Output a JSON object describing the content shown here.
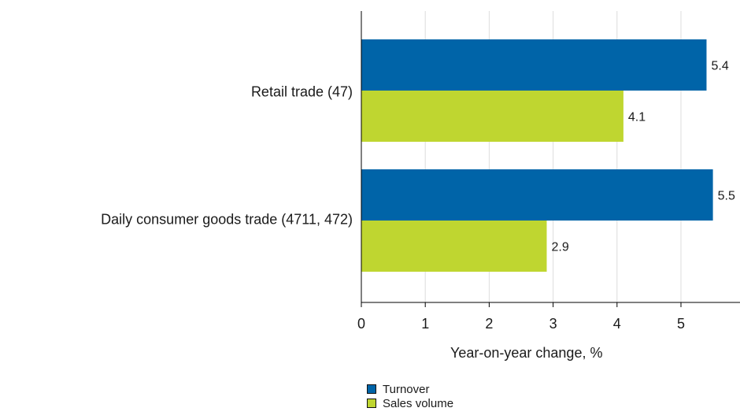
{
  "chart_data": {
    "type": "bar",
    "orientation": "horizontal",
    "categories": [
      "Retail trade (47)",
      "Daily consumer goods trade (4711, 472)"
    ],
    "series": [
      {
        "name": "Turnover",
        "color": "#0064a8",
        "values": [
          5.4,
          5.5
        ]
      },
      {
        "name": "Sales volume",
        "color": "#bfd630",
        "values": [
          4.1,
          2.9
        ]
      }
    ],
    "xlabel": "Year-on-year change, %",
    "xlim": [
      0,
      5.8
    ],
    "xticks": [
      "0",
      "1",
      "2",
      "3",
      "4",
      "5"
    ],
    "grid": true,
    "legend": "bottom"
  }
}
